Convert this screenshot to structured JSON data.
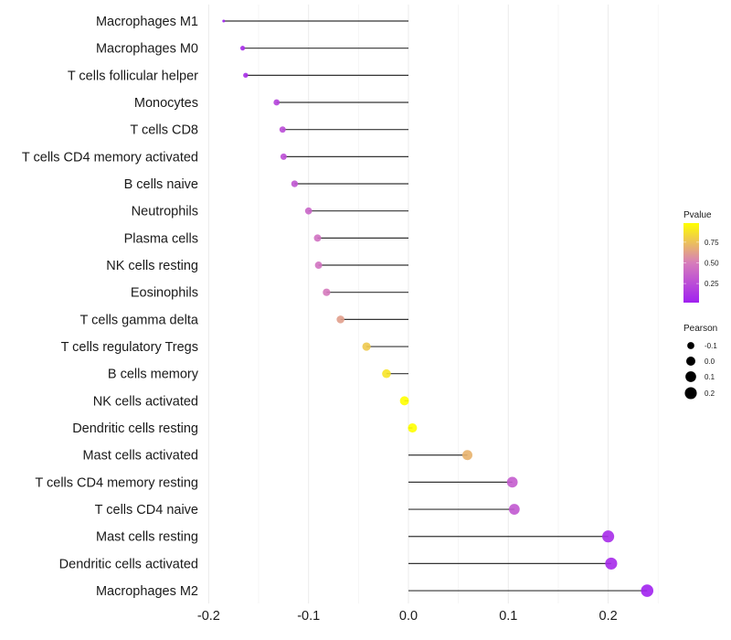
{
  "chart_data": {
    "type": "lollipop",
    "title": "",
    "xlabel": "",
    "ylabel": "",
    "xlim": [
      -0.2,
      0.25
    ],
    "x_ticks": [
      -0.2,
      -0.1,
      0.0,
      0.1,
      0.2
    ],
    "x_tick_labels": [
      "-0.2",
      "-0.1",
      "0.0",
      "0.1",
      "0.2"
    ],
    "grid": true,
    "categories": [
      "Macrophages M1",
      "Macrophages M0",
      "T cells follicular helper",
      "Monocytes",
      "T cells CD8",
      "T cells CD4 memory activated",
      "B cells naive",
      "Neutrophils",
      "Plasma cells",
      "NK cells resting",
      "Eosinophils",
      "T cells gamma delta",
      "T cells regulatory  Tregs ",
      "B cells memory",
      "NK cells activated",
      "Dendritic cells resting",
      "Mast cells activated",
      "T cells CD4 memory resting",
      "T cells CD4 naive",
      "Mast cells resting",
      "Dendritic cells activated",
      "Macrophages M2"
    ],
    "pearson": [
      -0.185,
      -0.166,
      -0.163,
      -0.132,
      -0.126,
      -0.125,
      -0.114,
      -0.1,
      -0.091,
      -0.09,
      -0.082,
      -0.068,
      -0.042,
      -0.022,
      -0.004,
      0.004,
      0.059,
      0.104,
      0.106,
      0.2,
      0.203,
      0.239
    ],
    "pvalue": [
      0.02,
      0.08,
      0.09,
      0.2,
      0.25,
      0.26,
      0.3,
      0.38,
      0.44,
      0.45,
      0.48,
      0.62,
      0.78,
      0.88,
      0.98,
      0.98,
      0.7,
      0.33,
      0.31,
      0.08,
      0.07,
      0.03
    ],
    "legend": {
      "color": {
        "title": "Pvalue",
        "ticks": [
          0.25,
          0.5,
          0.75
        ],
        "tick_labels": [
          "0.25",
          "0.50",
          "0.75"
        ],
        "range": [
          0.02,
          0.98
        ],
        "colors": [
          "#A020F0",
          "#D77DBB",
          "#FFFF00"
        ]
      },
      "size": {
        "title": "Pearson",
        "values": [
          -0.1,
          0.0,
          0.1,
          0.2
        ],
        "labels": [
          "-0.1",
          "0.0",
          "0.1",
          "0.2"
        ]
      },
      "placement": "right"
    }
  }
}
